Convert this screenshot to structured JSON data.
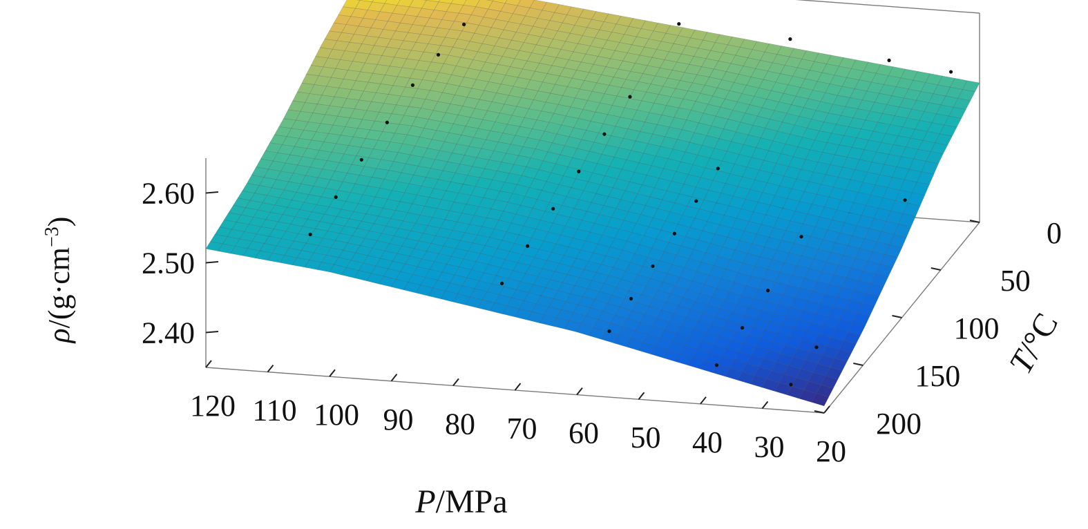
{
  "chart_data": {
    "type": "surface",
    "xlabel": {
      "italic": "P",
      "rest": "/MPa"
    },
    "ylabel": {
      "italic": "T",
      "rest": "/°C"
    },
    "zlabel": {
      "italic": "ρ",
      "rest": "/(g·cm",
      "sup": "−3",
      "close": ")"
    },
    "x_ticks": [
      "120",
      "110",
      "100",
      "90",
      "80",
      "70",
      "60",
      "50",
      "40",
      "30",
      "20"
    ],
    "y_ticks": [
      "0",
      "50",
      "100",
      "150",
      "200"
    ],
    "z_ticks": [
      "2.60",
      "2.50",
      "2.40"
    ],
    "xlim": [
      20,
      120
    ],
    "ylim": [
      0,
      200
    ],
    "zlim": [
      2.35,
      2.65
    ],
    "grid": false,
    "colormap": "parula",
    "surface": {
      "pressure_MPa": [
        120,
        100,
        80,
        60,
        40,
        20
      ],
      "temperature_C": [
        0,
        50,
        100,
        150,
        200
      ],
      "density_g_cm3": [
        [
          2.64,
          2.63,
          2.61,
          2.59,
          2.57,
          2.55
        ],
        [
          2.61,
          2.6,
          2.58,
          2.56,
          2.53,
          2.51
        ],
        [
          2.57,
          2.56,
          2.54,
          2.51,
          2.48,
          2.45
        ],
        [
          2.54,
          2.52,
          2.5,
          2.47,
          2.43,
          2.4
        ],
        [
          2.52,
          2.5,
          2.47,
          2.44,
          2.4,
          2.36
        ]
      ]
    },
    "measured_points": [
      {
        "P": 105,
        "T": 185,
        "rho": 2.53
      },
      {
        "P": 104,
        "T": 160,
        "rho": 2.55
      },
      {
        "P": 103,
        "T": 135,
        "rho": 2.57
      },
      {
        "P": 102,
        "T": 110,
        "rho": 2.59
      },
      {
        "P": 101,
        "T": 85,
        "rho": 2.61
      },
      {
        "P": 100,
        "T": 60,
        "rho": 2.62
      },
      {
        "P": 99,
        "T": 35,
        "rho": 2.63
      },
      {
        "P": 74,
        "T": 185,
        "rho": 2.48
      },
      {
        "P": 73,
        "T": 160,
        "rho": 2.5
      },
      {
        "P": 72,
        "T": 135,
        "rho": 2.52
      },
      {
        "P": 71,
        "T": 110,
        "rho": 2.54
      },
      {
        "P": 70,
        "T": 85,
        "rho": 2.56
      },
      {
        "P": 69,
        "T": 60,
        "rho": 2.58
      },
      {
        "P": 68,
        "T": 5,
        "rho": 2.61
      },
      {
        "P": 56,
        "T": 190,
        "rho": 2.43
      },
      {
        "P": 55,
        "T": 170,
        "rho": 2.45
      },
      {
        "P": 54,
        "T": 150,
        "rho": 2.47
      },
      {
        "P": 53,
        "T": 130,
        "rho": 2.49
      },
      {
        "P": 52,
        "T": 110,
        "rho": 2.51
      },
      {
        "P": 51,
        "T": 90,
        "rho": 2.53
      },
      {
        "P": 50,
        "T": 5,
        "rho": 2.6
      },
      {
        "P": 38,
        "T": 195,
        "rho": 2.4
      },
      {
        "P": 37,
        "T": 170,
        "rho": 2.42
      },
      {
        "P": 36,
        "T": 145,
        "rho": 2.44
      },
      {
        "P": 35,
        "T": 110,
        "rho": 2.47
      },
      {
        "P": 34,
        "T": 5,
        "rho": 2.58
      },
      {
        "P": 26,
        "T": 195,
        "rho": 2.38
      },
      {
        "P": 25,
        "T": 170,
        "rho": 2.4
      },
      {
        "P": 24,
        "T": 5,
        "rho": 2.57
      },
      {
        "P": 22,
        "T": 80,
        "rho": 2.49
      }
    ]
  }
}
